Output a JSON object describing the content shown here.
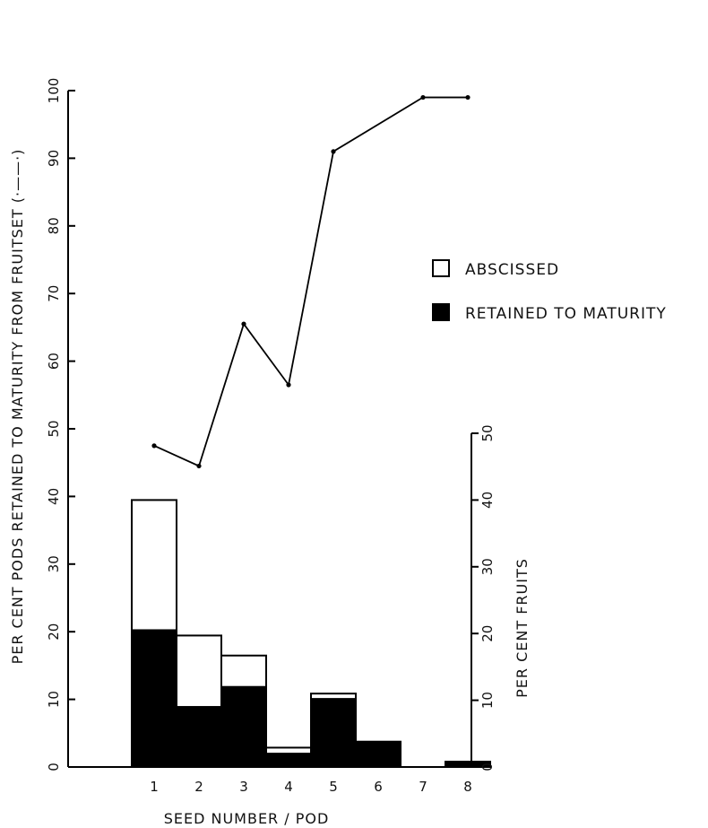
{
  "chart_data": {
    "type": "bar",
    "stacked": true,
    "categories": [
      "1",
      "2",
      "3",
      "4",
      "5",
      "6",
      "7",
      "8"
    ],
    "series": [
      {
        "name": "RETAINED TO MATURITY",
        "fill": "#000000",
        "values": [
          20.5,
          9,
          12,
          2,
          10.2,
          3.8,
          0,
          0.8
        ]
      },
      {
        "name": "ABSCISSED",
        "fill": "#ffffff",
        "values": [
          19.5,
          10.7,
          4.7,
          0.9,
          0.8,
          0,
          0,
          0
        ]
      }
    ],
    "line": {
      "name": "PER CENT PODS RETAINED TO MATURITY FROM FRUITSET",
      "x": [
        "1",
        "2",
        "3",
        "4",
        "5",
        "7",
        "8"
      ],
      "values": [
        47.5,
        44.5,
        65.5,
        56.5,
        91,
        99,
        99
      ]
    },
    "xlabel": "SEED NUMBER / POD",
    "ylabel_left": "PER CENT PODS RETAINED TO MATURITY FROM FRUITSET (·——·)",
    "ylabel_right": "PER CENT FRUITS",
    "ylim_left": [
      0,
      100
    ],
    "yticks_left": [
      "0",
      "10",
      "20",
      "30",
      "40",
      "50",
      "60",
      "70",
      "80",
      "90",
      "100"
    ],
    "ylim_right": [
      0,
      50
    ],
    "yticks_right": [
      "0",
      "10",
      "20",
      "30",
      "40",
      "50"
    ],
    "legend_position": "right",
    "grid": false
  }
}
